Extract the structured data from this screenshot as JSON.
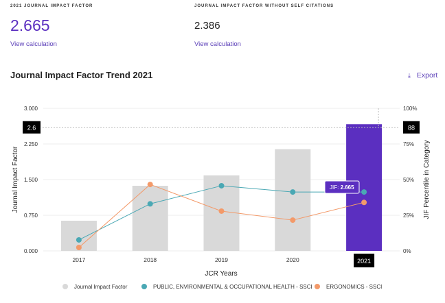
{
  "metrics": [
    {
      "label": "2021 JOURNAL IMPACT FACTOR",
      "value": "2.665",
      "link": "View calculation"
    },
    {
      "label": "JOURNAL IMPACT FACTOR WITHOUT SELF CITATIONS",
      "value": "2.386",
      "link": "View calculation"
    }
  ],
  "section": {
    "title": "Journal Impact Factor Trend 2021",
    "export_label": "Export",
    "export_icon": "download-icon"
  },
  "chart_data": {
    "type": "bar",
    "categories": [
      "2017",
      "2018",
      "2019",
      "2020",
      "2021"
    ],
    "xlabel": "JCR Years",
    "ylabel": "Journal Impact Factor",
    "y2label": "JIF Percentile in Category",
    "ylim": [
      0,
      3
    ],
    "y2lim": [
      0,
      100
    ],
    "yticks": [
      "0.000",
      "0.750",
      "1.500",
      "2.250",
      "3.000"
    ],
    "y2ticks": [
      "0%",
      "25%",
      "50%",
      "75%",
      "100%"
    ],
    "series": [
      {
        "name": "Journal Impact Factor",
        "kind": "bar",
        "axis": "left",
        "values": [
          0.635,
          1.37,
          1.59,
          2.14,
          2.665
        ],
        "color": "#d9d9d9",
        "highlight_color": "#5b2fc0"
      },
      {
        "name": "PUBLIC, ENVIRONMENTAL & OCCUPATIONAL HEALTH - SSCI",
        "kind": "line",
        "axis": "right",
        "values": [
          7.7,
          33,
          45.7,
          41.3,
          41.3
        ],
        "color": "#4aa8b4"
      },
      {
        "name": "ERGONOMICS - SSCI",
        "kind": "line",
        "axis": "right",
        "values": [
          2.4,
          46.6,
          27.9,
          21.6,
          34
        ],
        "color": "#f39a6a"
      }
    ],
    "crosshair": {
      "left_label": "2.6",
      "right_label": "88",
      "x_label": "2021",
      "level": 2.6
    },
    "tooltip": {
      "prefix": "JIF:",
      "value": "2.665"
    },
    "legend": "bottom",
    "grid": true
  }
}
